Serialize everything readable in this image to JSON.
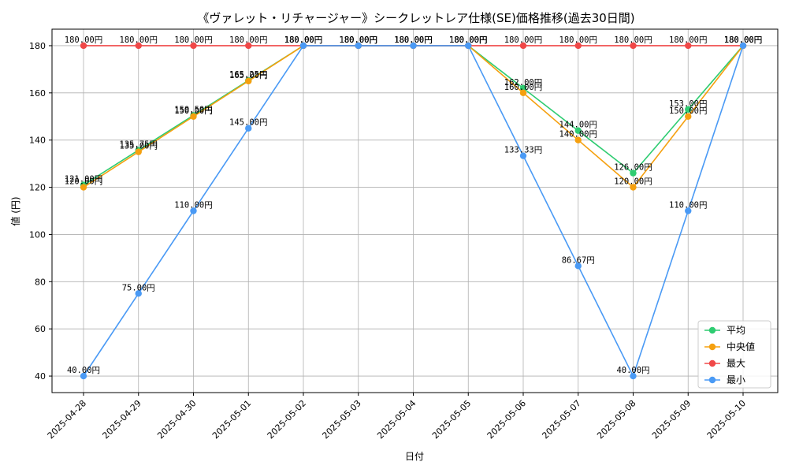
{
  "chart_data": {
    "type": "line",
    "title": "《ヴァレット・リチャージャー》シークレットレア仕様(SE)価格推移(過去30日間)",
    "xlabel": "日付",
    "ylabel": "値 (円)",
    "ylim": [
      33,
      187
    ],
    "yticks": [
      40,
      60,
      80,
      100,
      120,
      140,
      160,
      180
    ],
    "grid": true,
    "legend_position": "bottom-right",
    "value_suffix": "円",
    "categories": [
      "2025-04-28",
      "2025-04-29",
      "2025-04-30",
      "2025-05-01",
      "2025-05-02",
      "2025-05-03",
      "2025-05-04",
      "2025-05-05",
      "2025-05-06",
      "2025-05-07",
      "2025-05-08",
      "2025-05-09",
      "2025-05-10"
    ],
    "series": [
      {
        "name": "平均",
        "color": "#2ecc71",
        "values": [
          121.0,
          135.75,
          150.5,
          165.25,
          180.0,
          180.0,
          180.0,
          180.0,
          162.0,
          144.0,
          126.0,
          153.0,
          180.0
        ]
      },
      {
        "name": "中央値",
        "color": "#f5a00f",
        "values": [
          120.0,
          135.0,
          150.0,
          165.0,
          180.0,
          180.0,
          180.0,
          180.0,
          160.0,
          140.0,
          120.0,
          150.0,
          180.0
        ]
      },
      {
        "name": "最大",
        "color": "#f04848",
        "values": [
          180.0,
          180.0,
          180.0,
          180.0,
          180.0,
          180.0,
          180.0,
          180.0,
          180.0,
          180.0,
          180.0,
          180.0,
          180.0
        ]
      },
      {
        "name": "最小",
        "color": "#4a9af5",
        "values": [
          40.0,
          75.0,
          110.0,
          145.0,
          180.0,
          180.0,
          180.0,
          180.0,
          133.33,
          86.67,
          40.0,
          110.0,
          180.0
        ]
      }
    ]
  }
}
